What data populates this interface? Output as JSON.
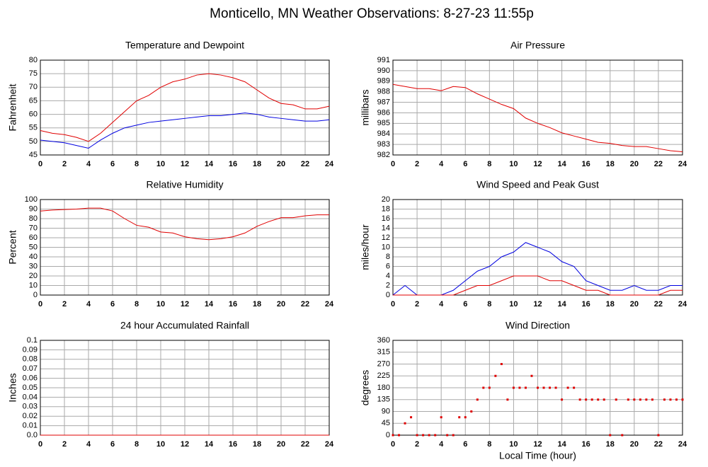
{
  "title": "Monticello, MN Weather Observations: 8-27-23 11:55p",
  "chart_data": [
    {
      "type": "line",
      "title": "Temperature and Dewpoint",
      "ylabel": "Fahrenheit",
      "x": [
        0,
        1,
        2,
        3,
        4,
        5,
        6,
        7,
        8,
        9,
        10,
        11,
        12,
        13,
        14,
        15,
        16,
        17,
        18,
        19,
        20,
        21,
        22,
        23,
        24
      ],
      "series": [
        {
          "color": "#e00000",
          "values": [
            54,
            53,
            52.5,
            51.5,
            50,
            53,
            57,
            61,
            65,
            67,
            70,
            72,
            73,
            74.5,
            75,
            74.5,
            73.5,
            72,
            69,
            66,
            64,
            63.5,
            62,
            62,
            63
          ]
        },
        {
          "color": "#0000e0",
          "values": [
            50.5,
            50,
            49.5,
            48.5,
            47.5,
            50.5,
            53,
            55,
            56,
            57,
            57.5,
            58,
            58.5,
            59,
            59.5,
            59.5,
            60,
            60.5,
            60,
            59,
            58.5,
            58,
            57.5,
            57.5,
            58
          ]
        }
      ],
      "xlim": [
        0,
        24
      ],
      "xticks": [
        0,
        2,
        4,
        6,
        8,
        10,
        12,
        14,
        16,
        18,
        20,
        22,
        24
      ],
      "ylim": [
        45,
        80
      ],
      "yticks": [
        45,
        50,
        55,
        60,
        65,
        70,
        75,
        80
      ],
      "grid": true
    },
    {
      "type": "line",
      "title": "Air Pressure",
      "ylabel": "millibars",
      "x": [
        0,
        1,
        2,
        3,
        4,
        5,
        6,
        7,
        8,
        9,
        10,
        11,
        12,
        13,
        14,
        15,
        16,
        17,
        18,
        19,
        20,
        21,
        22,
        23,
        24
      ],
      "series": [
        {
          "color": "#e00000",
          "values": [
            988.7,
            988.5,
            988.3,
            988.3,
            988.1,
            988.5,
            988.4,
            987.8,
            987.3,
            986.8,
            986.4,
            985.5,
            985.0,
            984.6,
            984.1,
            983.8,
            983.5,
            983.2,
            983.1,
            982.9,
            982.8,
            982.8,
            982.6,
            982.4,
            982.3
          ]
        }
      ],
      "xlim": [
        0,
        24
      ],
      "xticks": [
        0,
        2,
        4,
        6,
        8,
        10,
        12,
        14,
        16,
        18,
        20,
        22,
        24
      ],
      "ylim": [
        982,
        991
      ],
      "yticks": [
        982,
        983,
        984,
        985,
        986,
        987,
        988,
        989,
        990,
        991
      ],
      "grid": true
    },
    {
      "type": "line",
      "title": "Relative Humidity",
      "ylabel": "Percent",
      "x": [
        0,
        1,
        2,
        3,
        4,
        5,
        6,
        7,
        8,
        9,
        10,
        11,
        12,
        13,
        14,
        15,
        16,
        17,
        18,
        19,
        20,
        21,
        22,
        23,
        24
      ],
      "series": [
        {
          "color": "#e00000",
          "values": [
            88,
            89,
            89.5,
            90,
            91,
            91,
            88,
            80,
            73,
            71,
            66,
            65,
            61,
            59,
            58,
            59,
            61,
            65,
            72,
            77,
            81,
            81,
            83,
            84,
            84
          ]
        }
      ],
      "xlim": [
        0,
        24
      ],
      "xticks": [
        0,
        2,
        4,
        6,
        8,
        10,
        12,
        14,
        16,
        18,
        20,
        22,
        24
      ],
      "ylim": [
        0,
        100
      ],
      "yticks": [
        0,
        10,
        20,
        30,
        40,
        50,
        60,
        70,
        80,
        90,
        100
      ],
      "grid": true
    },
    {
      "type": "line",
      "title": "Wind Speed and Peak Gust",
      "ylabel": "miles/hour",
      "x": [
        0,
        1,
        2,
        3,
        4,
        5,
        6,
        7,
        8,
        9,
        10,
        11,
        12,
        13,
        14,
        15,
        16,
        17,
        18,
        19,
        20,
        21,
        22,
        23,
        24
      ],
      "series": [
        {
          "color": "#0000e0",
          "values": [
            0,
            2,
            0,
            0,
            0,
            1,
            3,
            5,
            6,
            8,
            9,
            11,
            10,
            9,
            7,
            6,
            3,
            2,
            1,
            1,
            2,
            1,
            1,
            2,
            2
          ]
        },
        {
          "color": "#e00000",
          "values": [
            0,
            0,
            0,
            0,
            0,
            0,
            1,
            2,
            2,
            3,
            4,
            4,
            4,
            3,
            3,
            2,
            1,
            1,
            0,
            0,
            0,
            0,
            0,
            1,
            1
          ]
        }
      ],
      "xlim": [
        0,
        24
      ],
      "xticks": [
        0,
        2,
        4,
        6,
        8,
        10,
        12,
        14,
        16,
        18,
        20,
        22,
        24
      ],
      "ylim": [
        0,
        20
      ],
      "yticks": [
        0,
        2,
        4,
        6,
        8,
        10,
        12,
        14,
        16,
        18,
        20
      ],
      "grid": true
    },
    {
      "type": "line",
      "title": "24 hour Accumulated Rainfall",
      "ylabel": "Inches",
      "x": [
        0,
        24
      ],
      "series": [
        {
          "color": "#e00000",
          "values": [
            0,
            0
          ]
        }
      ],
      "xlim": [
        0,
        24
      ],
      "xticks": [
        0,
        2,
        4,
        6,
        8,
        10,
        12,
        14,
        16,
        18,
        20,
        22,
        24
      ],
      "ylim": [
        0,
        0.1
      ],
      "yticks": [
        {
          "value": 0,
          "label": "0.0"
        },
        0.01,
        0.02,
        0.03,
        0.04,
        0.05,
        0.06,
        0.07,
        0.08,
        0.09,
        0.1
      ],
      "grid": true
    },
    {
      "type": "scatter",
      "title": "Wind Direction",
      "ylabel": "degrees",
      "xlabel": "Local Time (hour)",
      "x": [
        0,
        0.5,
        1,
        1.5,
        2,
        2.5,
        3,
        3.5,
        4,
        4.5,
        5,
        5.5,
        6,
        6.5,
        7,
        7.5,
        8,
        8.5,
        9,
        9.5,
        10,
        10.5,
        11,
        11.5,
        12,
        12.5,
        13,
        13.5,
        14,
        14.5,
        15,
        15.5,
        16,
        16.5,
        17,
        17.5,
        18,
        18.5,
        19,
        19.5,
        20,
        20.5,
        21,
        21.5,
        22,
        22.5,
        23,
        23.5,
        24
      ],
      "series": [
        {
          "color": "#e00000",
          "values": [
            0,
            0,
            45,
            68,
            0,
            0,
            0,
            0,
            68,
            0,
            0,
            68,
            68,
            90,
            135,
            180,
            180,
            225,
            270,
            135,
            180,
            180,
            180,
            225,
            180,
            180,
            180,
            180,
            135,
            180,
            180,
            135,
            135,
            135,
            135,
            135,
            0,
            135,
            0,
            135,
            135,
            135,
            135,
            135,
            0,
            135,
            135,
            135,
            135
          ]
        }
      ],
      "xlim": [
        0,
        24
      ],
      "xticks": [
        0,
        2,
        4,
        6,
        8,
        10,
        12,
        14,
        16,
        18,
        20,
        22,
        24
      ],
      "ylim": [
        0,
        360
      ],
      "yticks": [
        0,
        45,
        90,
        135,
        180,
        225,
        270,
        315,
        360
      ],
      "grid": true
    }
  ]
}
